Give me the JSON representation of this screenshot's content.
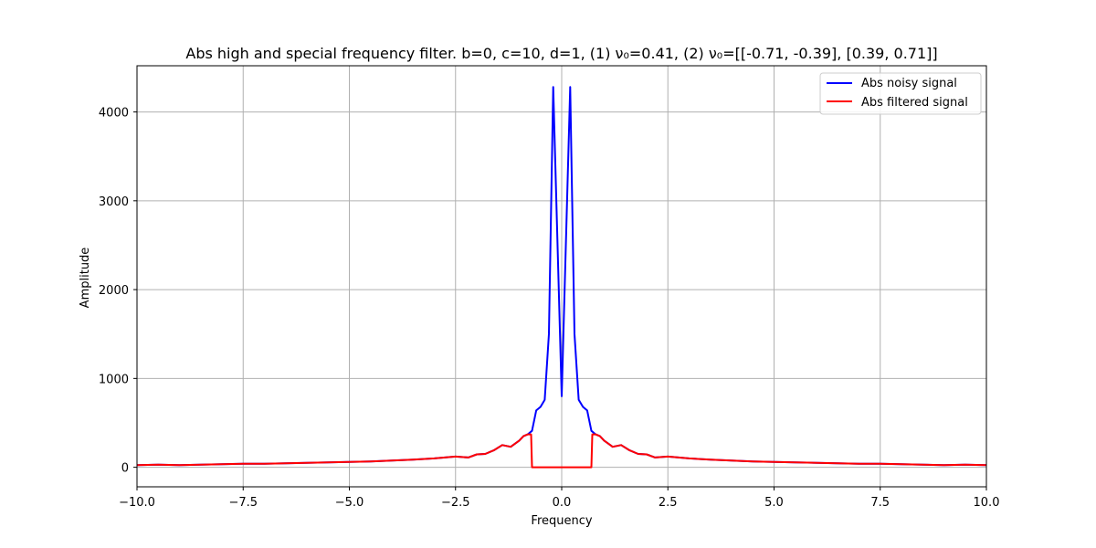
{
  "chart_data": {
    "type": "line",
    "title": "Abs high and special frequency filter. b=0, c=10, d=1, (1) ν₀=0.41, (2) ν₀=[[-0.71, -0.39], [0.39, 0.71]]",
    "xlabel": "Frequency",
    "ylabel": "Amplitude",
    "xlim": [
      -10,
      10
    ],
    "ylim": [
      -220,
      4520
    ],
    "xticks": [
      -10,
      -7.5,
      -5,
      -2.5,
      0,
      2.5,
      5,
      7.5,
      10
    ],
    "xtick_labels": [
      "−10.0",
      "−7.5",
      "−5.0",
      "−2.5",
      "0.0",
      "2.5",
      "5.0",
      "7.5",
      "10.0"
    ],
    "yticks": [
      0,
      1000,
      2000,
      3000,
      4000
    ],
    "ytick_labels": [
      "0",
      "1000",
      "2000",
      "3000",
      "4000"
    ],
    "grid": true,
    "legend_position": "top-right",
    "series": [
      {
        "name": "Abs noisy signal",
        "color": "#0000ff",
        "x": [
          -10,
          -9.5,
          -9,
          -8.5,
          -8,
          -7.5,
          -7,
          -6.5,
          -6,
          -5.5,
          -5,
          -4.5,
          -4,
          -3.5,
          -3,
          -2.5,
          -2.2,
          -2,
          -1.8,
          -1.6,
          -1.4,
          -1.2,
          -1,
          -0.9,
          -0.8,
          -0.7,
          -0.6,
          -0.5,
          -0.4,
          -0.3,
          -0.2,
          0,
          0.2,
          0.3,
          0.4,
          0.5,
          0.6,
          0.7,
          0.8,
          0.9,
          1,
          1.2,
          1.4,
          1.6,
          1.8,
          2,
          2.2,
          2.5,
          3,
          3.5,
          4,
          4.5,
          5,
          5.5,
          6,
          6.5,
          7,
          7.5,
          8,
          8.5,
          9,
          9.5,
          10
        ],
        "y": [
          25,
          30,
          25,
          30,
          35,
          40,
          40,
          45,
          50,
          55,
          60,
          65,
          75,
          85,
          100,
          120,
          110,
          145,
          150,
          190,
          250,
          230,
          300,
          350,
          370,
          410,
          640,
          680,
          760,
          1500,
          4280,
          800,
          4280,
          1500,
          760,
          680,
          640,
          410,
          370,
          350,
          300,
          230,
          250,
          190,
          150,
          145,
          110,
          120,
          100,
          85,
          75,
          65,
          60,
          55,
          50,
          45,
          40,
          40,
          35,
          30,
          25,
          30,
          25
        ]
      },
      {
        "name": "Abs filtered signal",
        "color": "#ff0000",
        "x": [
          -10,
          -9.5,
          -9,
          -8.5,
          -8,
          -7.5,
          -7,
          -6.5,
          -6,
          -5.5,
          -5,
          -4.5,
          -4,
          -3.5,
          -3,
          -2.5,
          -2.2,
          -2,
          -1.8,
          -1.6,
          -1.4,
          -1.2,
          -1,
          -0.9,
          -0.8,
          -0.72,
          -0.7,
          0,
          0.7,
          0.72,
          0.8,
          0.9,
          1,
          1.2,
          1.4,
          1.6,
          1.8,
          2,
          2.2,
          2.5,
          3,
          3.5,
          4,
          4.5,
          5,
          5.5,
          6,
          6.5,
          7,
          7.5,
          8,
          8.5,
          9,
          9.5,
          10
        ],
        "y": [
          25,
          30,
          25,
          30,
          35,
          40,
          40,
          45,
          50,
          55,
          60,
          65,
          75,
          85,
          100,
          120,
          110,
          145,
          150,
          190,
          250,
          230,
          300,
          350,
          370,
          370,
          0,
          0,
          0,
          370,
          370,
          350,
          300,
          230,
          250,
          190,
          150,
          145,
          110,
          120,
          100,
          85,
          75,
          65,
          60,
          55,
          50,
          45,
          40,
          40,
          35,
          30,
          25,
          30,
          25
        ]
      }
    ]
  }
}
